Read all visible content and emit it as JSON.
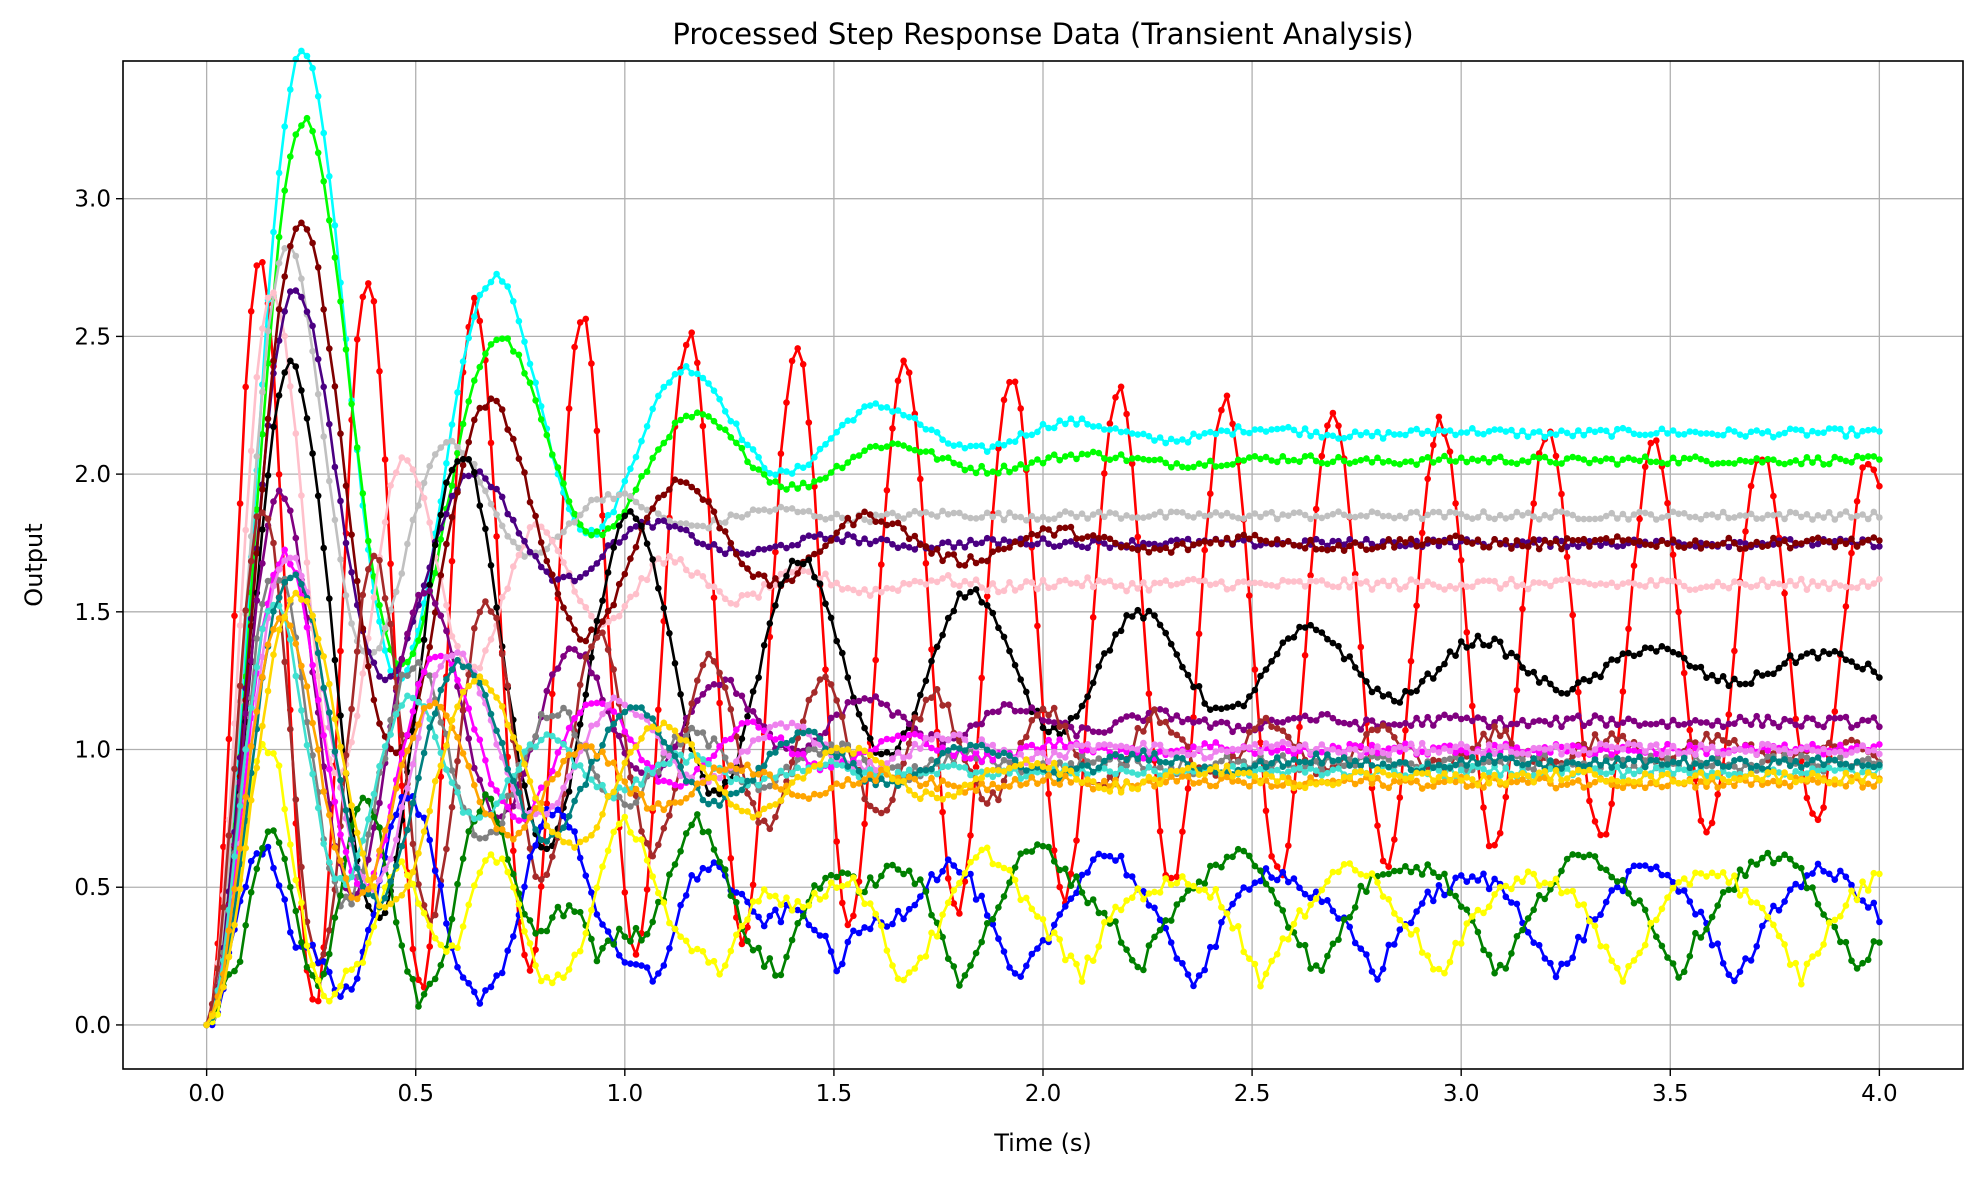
{
  "chart_data": {
    "type": "line",
    "title": "Processed Step Response Data (Transient Analysis)",
    "xlabel": "Time (s)",
    "ylabel": "Output",
    "xlim": [
      -0.2,
      4.2
    ],
    "ylim": [
      -0.16,
      3.5
    ],
    "x_ticks": [
      0.0,
      0.5,
      1.0,
      1.5,
      2.0,
      2.5,
      3.0,
      3.5,
      4.0
    ],
    "x_tick_labels": [
      "0.0",
      "0.5",
      "1.0",
      "1.5",
      "2.0",
      "2.5",
      "3.0",
      "3.5",
      "4.0"
    ],
    "y_ticks": [
      0.0,
      0.5,
      1.0,
      1.5,
      2.0,
      2.5,
      3.0
    ],
    "y_tick_labels": [
      "0.0",
      "0.5",
      "1.0",
      "1.5",
      "2.0",
      "2.5",
      "3.0"
    ],
    "grid": true,
    "legend": "none",
    "markers": true,
    "series": [
      {
        "color": "#ff0000",
        "curve": {
          "K": 1.4,
          "z": 0.008,
          "wn": 24.5,
          "rect": false,
          "n": 0.03
        }
      },
      {
        "color": "#00ffff",
        "curve": {
          "K": 2.15,
          "z": 0.14,
          "wn": 13.8,
          "rect": false,
          "n": 0.015
        }
      },
      {
        "color": "#00ff00",
        "curve": {
          "K": 2.05,
          "z": 0.16,
          "wn": 13.6,
          "rect": false,
          "n": 0.015
        }
      },
      {
        "color": "#c0c0c0",
        "curve": {
          "K": 1.85,
          "z": 0.2,
          "wn": 16.5,
          "rect": false,
          "n": 0.015
        }
      },
      {
        "color": "#ffc0cb",
        "curve": {
          "K": 1.6,
          "z": 0.13,
          "wn": 20.0,
          "rect": false,
          "n": 0.02
        }
      },
      {
        "color": "#4b0082",
        "curve": {
          "K": 1.75,
          "z": 0.2,
          "wn": 15.0,
          "rect": false,
          "n": 0.015
        }
      },
      {
        "color": "#800000",
        "curve": {
          "K": 1.75,
          "z": 0.13,
          "wn": 14.0,
          "rect": false,
          "n": 0.02
        }
      },
      {
        "color": "#000000",
        "curve": {
          "K": 1.3,
          "z": 0.055,
          "wn": 15.5,
          "rect": false,
          "n": 0.02
        }
      },
      {
        "color": "#800080",
        "curve": {
          "K": 1.1,
          "z": 0.09,
          "wn": 18.0,
          "rect": false,
          "n": 0.02
        }
      },
      {
        "color": "#a52a2a",
        "curve": {
          "K": 1.0,
          "z": 0.04,
          "wn": 23.5,
          "rect": false,
          "n": 0.03
        }
      },
      {
        "color": "#808080",
        "curve": {
          "K": 0.95,
          "z": 0.1,
          "wn": 19.0,
          "rect": false,
          "n": 0.03
        }
      },
      {
        "color": "#0000ff",
        "curve": {
          "K": 0.55,
          "z": 0.05,
          "wn": 19.0,
          "rect": true,
          "n": 0.03
        }
      },
      {
        "color": "#008000",
        "curve": {
          "K": 0.6,
          "z": 0.05,
          "wn": 24.0,
          "rect": true,
          "n": 0.03
        }
      },
      {
        "color": "#ffff00",
        "curve": {
          "K": 0.55,
          "z": 0.05,
          "wn": 22.0,
          "rect": true,
          "n": 0.03
        }
      },
      {
        "color": "#ff00ff",
        "curve": {
          "K": 1.0,
          "z": 0.11,
          "wn": 17.0,
          "rect": false,
          "n": 0.02
        }
      },
      {
        "color": "#ee82ee",
        "curve": {
          "K": 1.0,
          "z": 0.11,
          "wn": 16.0,
          "rect": false,
          "n": 0.02
        }
      },
      {
        "color": "#40e0d0",
        "curve": {
          "K": 0.92,
          "z": 0.13,
          "wn": 19.5,
          "rect": false,
          "n": 0.02
        }
      },
      {
        "color": "#008080",
        "curve": {
          "K": 0.95,
          "z": 0.1,
          "wn": 15.5,
          "rect": false,
          "n": 0.02
        }
      },
      {
        "color": "#ffa500",
        "curve": {
          "K": 0.88,
          "z": 0.12,
          "wn": 17.5,
          "rect": false,
          "n": 0.02
        }
      },
      {
        "color": "#ffd700",
        "curve": {
          "K": 0.9,
          "z": 0.1,
          "wn": 14.5,
          "rect": false,
          "n": 0.02
        }
      }
    ]
  }
}
